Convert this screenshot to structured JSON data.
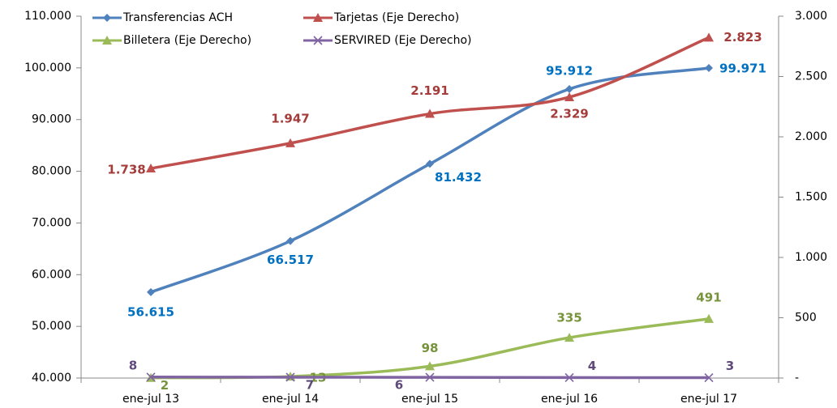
{
  "chart_data": {
    "type": "line",
    "categories": [
      "ene-jul 13",
      "ene-jul 14",
      "ene-jul 15",
      "ene-jul 16",
      "ene-jul 17"
    ],
    "series": [
      {
        "name": "Transferencias ACH",
        "color": "#4f81bd",
        "marker": "diamond",
        "values": [
          56615,
          66517,
          81432,
          95912,
          99971
        ],
        "value_labels": [
          "56.615",
          "66.517",
          "81.432",
          "95.912",
          "99.971"
        ],
        "label_color": "#0070c0"
      },
      {
        "name": "Tarjetas (Eje Derecho)",
        "color": "#c0504d",
        "marker": "triangle",
        "axis": "y2",
        "values": [
          1738,
          1947,
          2191,
          2329,
          2823
        ],
        "value_labels": [
          "1.738",
          "1.947",
          "2.191",
          "2.329",
          "2.823"
        ],
        "label_color": "#a33c3a"
      },
      {
        "name": "Billetera (Eje Derecho)",
        "color": "#9bbb59",
        "marker": "triangle",
        "axis": "y2",
        "values": [
          2,
          13,
          98,
          335,
          491
        ],
        "label_color": "#77933c"
      },
      {
        "name": "SERVIRED (Eje Derecho)",
        "color": "#8064a2",
        "marker": "x",
        "axis": "y2",
        "values": [
          8,
          7,
          6,
          4,
          3
        ],
        "label_color": "#604a7b"
      }
    ],
    "ylim": [
      40000,
      110000
    ],
    "yticks": [
      {
        "value": 40000,
        "label": "40.000"
      },
      {
        "value": 50000,
        "label": "50.000"
      },
      {
        "value": 60000,
        "label": "60.000"
      },
      {
        "value": 70000,
        "label": "70.000"
      },
      {
        "value": 80000,
        "label": "80.000"
      },
      {
        "value": 90000,
        "label": "90.000"
      },
      {
        "value": 100000,
        "label": "100.000"
      },
      {
        "value": 110000,
        "label": "110.000"
      }
    ],
    "y2lim": [
      0,
      3000
    ],
    "y2ticks": [
      {
        "value": 0,
        "label": "-"
      },
      500,
      {
        "value": 1000,
        "label": "1.000"
      },
      {
        "value": 1500,
        "label": "1.500"
      },
      {
        "value": 2000,
        "label": "2.000"
      },
      {
        "value": 2500,
        "label": "2.500"
      },
      {
        "value": 3000,
        "label": "3.000"
      }
    ],
    "grid": false
  }
}
